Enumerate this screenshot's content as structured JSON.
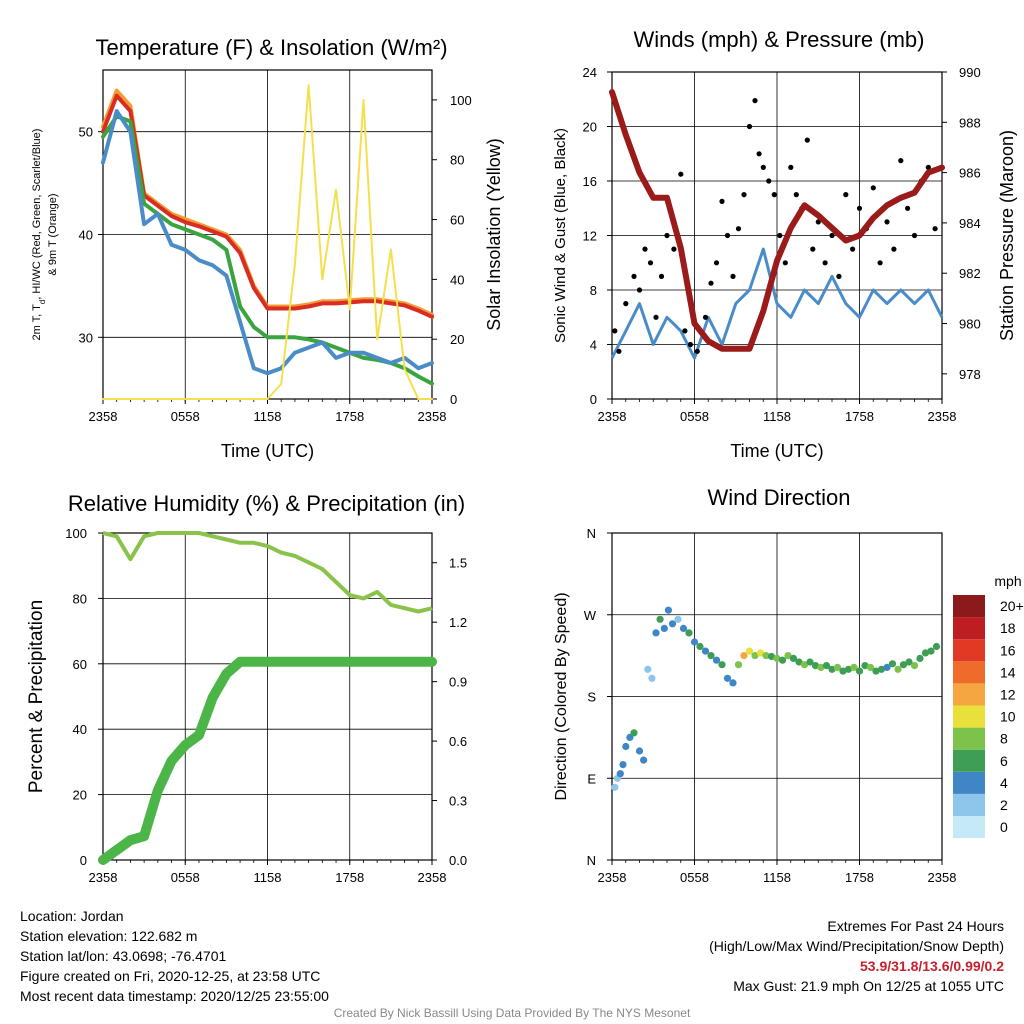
{
  "chart_data": [
    {
      "type": "line",
      "title": "Temperature (F) & Insolation (W/m²)",
      "xlabel": "Time (UTC)",
      "ylabel": "2m T, Td, HI/WC (Red, Green, Scarlet/Blue) & 9m T (Orange)",
      "ylabel_line1": "2m T, T",
      "ylabel_sub": "d",
      "ylabel_line1_rest": ", HI/WC (Red, Green, Scarlet/Blue)",
      "ylabel_line2": "& 9m T (Orange)",
      "y2label": "Solar Insolation (Yellow)",
      "x_ticks": [
        "2358",
        "0558",
        "1158",
        "1758",
        "2358"
      ],
      "ylim": [
        24,
        56
      ],
      "y_ticks": [
        30,
        40,
        50
      ],
      "y2lim": [
        0,
        110
      ],
      "y2_ticks": [
        0,
        20,
        40,
        60,
        80,
        100
      ],
      "x_hours": [
        0,
        1,
        2,
        3,
        4,
        5,
        6,
        7,
        8,
        9,
        10,
        11,
        12,
        13,
        14,
        15,
        16,
        17,
        18,
        19,
        20,
        21,
        22,
        23,
        24
      ],
      "series": [
        {
          "color": "#f39c35",
          "axis": "left",
          "values": [
            50.5,
            54.0,
            52.5,
            44.0,
            43.0,
            42.0,
            41.5,
            41.0,
            40.5,
            40.0,
            38.5,
            35.0,
            33.0,
            33.0,
            33.0,
            33.2,
            33.5,
            33.5,
            33.6,
            33.7,
            33.7,
            33.5,
            33.3,
            32.8,
            32.2
          ]
        },
        {
          "color": "#d92c23",
          "axis": "left",
          "values": [
            50.0,
            53.5,
            52.0,
            43.8,
            42.8,
            41.8,
            41.2,
            40.8,
            40.3,
            39.8,
            38.2,
            34.8,
            32.8,
            32.8,
            32.8,
            33.0,
            33.3,
            33.3,
            33.4,
            33.5,
            33.5,
            33.3,
            33.1,
            32.6,
            32.0
          ]
        },
        {
          "color": "#3aa43e",
          "axis": "left",
          "values": [
            49.5,
            51.5,
            51.0,
            43.0,
            42.0,
            41.0,
            40.5,
            40.0,
            39.5,
            38.5,
            33.0,
            31.0,
            30.0,
            30.0,
            30.0,
            29.8,
            29.5,
            29.0,
            28.5,
            28.0,
            27.8,
            27.5,
            27.0,
            26.2,
            25.5
          ]
        },
        {
          "color": "#4a8cc8",
          "axis": "left",
          "values": [
            47.0,
            52.0,
            50.0,
            41.0,
            42.0,
            39.0,
            38.5,
            37.5,
            37.0,
            36.0,
            31.5,
            27.0,
            26.5,
            27.0,
            28.5,
            29.0,
            29.5,
            28.0,
            28.5,
            28.5,
            28.0,
            27.5,
            28.0,
            27.0,
            27.5
          ]
        },
        {
          "color": "#f5df4d",
          "axis": "right",
          "values": [
            0,
            0,
            0,
            0,
            0,
            0,
            0,
            0,
            0,
            0,
            0,
            0,
            0,
            5,
            45,
            105,
            40,
            70,
            30,
            100,
            20,
            50,
            10,
            0,
            0
          ]
        }
      ]
    },
    {
      "type": "line",
      "title": "Winds (mph) & Pressure (mb)",
      "xlabel": "Time (UTC)",
      "ylabel": "Sonic Wind & Gust (Blue, Black)",
      "y2label": "Station Pressure (Maroon)",
      "x_ticks": [
        "2358",
        "0558",
        "1158",
        "1758",
        "2358"
      ],
      "ylim": [
        0,
        24
      ],
      "y_ticks": [
        0,
        4,
        8,
        12,
        16,
        20,
        24
      ],
      "y2lim": [
        977,
        990
      ],
      "y2_ticks": [
        978,
        980,
        982,
        984,
        986,
        988,
        990
      ],
      "x_hours": [
        0,
        1,
        2,
        3,
        4,
        5,
        6,
        7,
        8,
        9,
        10,
        11,
        12,
        13,
        14,
        15,
        16,
        17,
        18,
        19,
        20,
        21,
        22,
        23,
        24
      ],
      "series": [
        {
          "name": "wind",
          "color": "#4a8cc8",
          "axis": "left",
          "values": [
            3,
            5,
            7,
            4,
            6,
            5,
            3,
            6,
            4,
            7,
            8,
            11,
            7,
            6,
            8,
            7,
            9,
            7,
            6,
            8,
            7,
            8,
            7,
            8,
            6
          ]
        },
        {
          "name": "pressure",
          "color": "#9b1b1b",
          "axis": "right",
          "values": [
            989.2,
            987.5,
            986.0,
            985.0,
            985.0,
            983.0,
            980.0,
            979.3,
            979.0,
            979.0,
            979.0,
            980.5,
            982.5,
            983.8,
            984.7,
            984.3,
            983.8,
            983.3,
            983.5,
            984.2,
            984.7,
            985.0,
            985.2,
            986.0,
            986.2
          ]
        }
      ],
      "gust_points": [
        [
          0.2,
          5
        ],
        [
          0.5,
          3.5
        ],
        [
          1.0,
          7
        ],
        [
          1.6,
          9
        ],
        [
          2.0,
          8
        ],
        [
          2.4,
          11
        ],
        [
          2.8,
          10
        ],
        [
          3.2,
          6
        ],
        [
          3.6,
          9
        ],
        [
          4.0,
          12
        ],
        [
          4.5,
          11
        ],
        [
          5.0,
          16.5
        ],
        [
          5.3,
          5
        ],
        [
          5.7,
          4
        ],
        [
          6.2,
          3.5
        ],
        [
          6.8,
          6
        ],
        [
          7.2,
          8.5
        ],
        [
          7.6,
          10
        ],
        [
          8.0,
          14.5
        ],
        [
          8.4,
          12
        ],
        [
          8.8,
          9
        ],
        [
          9.2,
          12.5
        ],
        [
          9.6,
          15
        ],
        [
          10.0,
          20
        ],
        [
          10.4,
          21.9
        ],
        [
          10.7,
          18
        ],
        [
          11.0,
          17
        ],
        [
          11.4,
          16
        ],
        [
          11.8,
          15
        ],
        [
          12.2,
          12
        ],
        [
          12.6,
          10
        ],
        [
          13.0,
          17
        ],
        [
          13.4,
          15
        ],
        [
          13.8,
          14
        ],
        [
          14.2,
          19
        ],
        [
          14.6,
          11
        ],
        [
          15.0,
          13
        ],
        [
          15.5,
          10
        ],
        [
          16.0,
          12
        ],
        [
          16.5,
          9
        ],
        [
          17.0,
          15
        ],
        [
          17.5,
          11
        ],
        [
          18.0,
          14
        ],
        [
          18.5,
          12.5
        ],
        [
          19.0,
          15.5
        ],
        [
          19.5,
          10
        ],
        [
          20.0,
          13
        ],
        [
          20.5,
          11
        ],
        [
          21.0,
          17.5
        ],
        [
          21.5,
          14
        ],
        [
          22.0,
          12
        ],
        [
          22.5,
          16
        ],
        [
          23.0,
          17
        ],
        [
          23.5,
          12.5
        ]
      ]
    },
    {
      "type": "line",
      "title": "Relative Humidity (%) & Precipitation (in)",
      "ylabel": "Percent & Precipitation",
      "x_ticks": [
        "2358",
        "0558",
        "1158",
        "1758",
        "2358"
      ],
      "ylim": [
        0,
        100
      ],
      "y_ticks": [
        0,
        20,
        40,
        60,
        80,
        100
      ],
      "y2lim": [
        0,
        1.65
      ],
      "y2_ticks": [
        "0.0",
        "0.3",
        "0.6",
        "0.9",
        "1.2",
        "1.5"
      ],
      "x_hours": [
        0,
        1,
        2,
        3,
        4,
        5,
        6,
        7,
        8,
        9,
        10,
        11,
        12,
        13,
        14,
        15,
        16,
        17,
        18,
        19,
        20,
        21,
        22,
        23,
        24
      ],
      "series": [
        {
          "name": "rh",
          "color": "#8bc34a",
          "axis": "left",
          "values": [
            100,
            99,
            92,
            99,
            100,
            100,
            100,
            100,
            99,
            98,
            97,
            97,
            96,
            94,
            93,
            91,
            89,
            85,
            81,
            80,
            82,
            78,
            77,
            76,
            77
          ]
        },
        {
          "name": "precip",
          "color": "#4cb548",
          "axis": "right",
          "values": [
            0.0,
            0.05,
            0.1,
            0.12,
            0.35,
            0.5,
            0.58,
            0.63,
            0.82,
            0.94,
            1.0,
            1.0,
            1.0,
            1.0,
            1.0,
            1.0,
            1.0,
            1.0,
            1.0,
            1.0,
            1.0,
            1.0,
            1.0,
            1.0,
            1.0
          ]
        }
      ]
    },
    {
      "type": "scatter",
      "title": "Wind Direction",
      "ylabel": "Direction (Colored By Speed)",
      "x_ticks": [
        "2358",
        "0558",
        "1158",
        "1758",
        "2358"
      ],
      "y_ticks": [
        "N",
        "E",
        "S",
        "W",
        "N"
      ],
      "ylim": [
        0,
        360
      ],
      "legend_title": "mph",
      "legend_labels": [
        "0",
        "2",
        "4",
        "6",
        "8",
        "10",
        "12",
        "14",
        "16",
        "18",
        "20+"
      ],
      "legend_colors": [
        "#c6e9f7",
        "#8ec5ea",
        "#3f86c6",
        "#3f9e55",
        "#7dc24b",
        "#e8e13c",
        "#f6a640",
        "#ef6b2c",
        "#e03a24",
        "#be1d22",
        "#8c1a1a"
      ],
      "points": [
        [
          0.2,
          80,
          2
        ],
        [
          0.4,
          90,
          2
        ],
        [
          0.6,
          95,
          3
        ],
        [
          0.8,
          105,
          4
        ],
        [
          1.0,
          125,
          3
        ],
        [
          1.3,
          135,
          4
        ],
        [
          1.6,
          140,
          5
        ],
        [
          2.0,
          120,
          4
        ],
        [
          2.3,
          110,
          3
        ],
        [
          2.6,
          210,
          1
        ],
        [
          2.9,
          200,
          2
        ],
        [
          3.2,
          250,
          4
        ],
        [
          3.5,
          265,
          5
        ],
        [
          3.8,
          255,
          3
        ],
        [
          4.1,
          275,
          3
        ],
        [
          4.4,
          260,
          4
        ],
        [
          4.8,
          265,
          2
        ],
        [
          5.2,
          255,
          4
        ],
        [
          5.6,
          250,
          5
        ],
        [
          6.0,
          240,
          3
        ],
        [
          6.4,
          235,
          6
        ],
        [
          6.8,
          230,
          4
        ],
        [
          7.2,
          225,
          5
        ],
        [
          7.6,
          220,
          3
        ],
        [
          8.0,
          215,
          6
        ],
        [
          8.4,
          200,
          4
        ],
        [
          8.8,
          195,
          3
        ],
        [
          9.2,
          215,
          7
        ],
        [
          9.6,
          225,
          12
        ],
        [
          10.0,
          230,
          10
        ],
        [
          10.4,
          225,
          8
        ],
        [
          10.8,
          228,
          9
        ],
        [
          11.2,
          225,
          7
        ],
        [
          11.6,
          224,
          6
        ],
        [
          12.0,
          222,
          8
        ],
        [
          12.4,
          220,
          5
        ],
        [
          12.8,
          225,
          7
        ],
        [
          13.2,
          222,
          6
        ],
        [
          13.6,
          218,
          5
        ],
        [
          14.0,
          215,
          7
        ],
        [
          14.4,
          218,
          6
        ],
        [
          14.8,
          214,
          5
        ],
        [
          15.2,
          212,
          7
        ],
        [
          15.6,
          214,
          6
        ],
        [
          16.0,
          210,
          5
        ],
        [
          16.4,
          212,
          7
        ],
        [
          16.8,
          208,
          6
        ],
        [
          17.2,
          210,
          5
        ],
        [
          17.6,
          212,
          7
        ],
        [
          18.0,
          208,
          6
        ],
        [
          18.4,
          214,
          5
        ],
        [
          18.8,
          212,
          7
        ],
        [
          19.2,
          208,
          6
        ],
        [
          19.6,
          210,
          5
        ],
        [
          20.0,
          212,
          4
        ],
        [
          20.4,
          216,
          6
        ],
        [
          20.8,
          210,
          7
        ],
        [
          21.2,
          215,
          6
        ],
        [
          21.6,
          218,
          5
        ],
        [
          22.0,
          214,
          7
        ],
        [
          22.4,
          222,
          6
        ],
        [
          22.8,
          228,
          5
        ],
        [
          23.2,
          230,
          6
        ],
        [
          23.6,
          235,
          5
        ]
      ]
    }
  ],
  "footer": {
    "location": "Location: Jordan",
    "elevation": "Station elevation: 122.682 m",
    "latlon": "Station lat/lon: 43.0698; -76.4701",
    "created": "Figure created on Fri, 2020-12-25, at 23:58 UTC",
    "recent": "Most recent data timestamp: 2020/12/25 23:55:00",
    "extremes_title": "Extremes For Past 24 Hours",
    "extremes_sub": "(High/Low/Max Wind/Precipitation/Snow Depth)",
    "extremes_values": "53.9/31.8/13.6/0.99/0.2",
    "max_gust": "Max Gust: 21.9 mph On 12/25 at 1055 UTC",
    "credit": "Created By Nick Bassill Using Data Provided By The NYS Mesonet"
  }
}
